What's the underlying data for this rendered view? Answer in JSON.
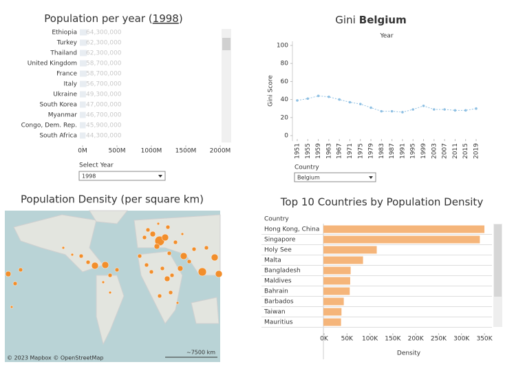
{
  "chart_data": [
    {
      "type": "barh",
      "title_parts": [
        "Population per year (",
        "1998",
        ")"
      ],
      "categories": [
        "Ethiopia",
        "Turkey",
        "Thailand",
        "United Kingdom",
        "France",
        "Italy",
        "Ukraine",
        "South Korea",
        "Myanmar",
        "Congo, Dem. Rep.",
        "South Africa"
      ],
      "values": [
        64300000,
        62300000,
        62300000,
        58700000,
        58700000,
        56700000,
        49300000,
        47000000,
        46700000,
        45900000,
        44300000
      ],
      "value_labels": [
        "64,300,000",
        "62,300,000",
        "62,300,000",
        "58,700,000",
        "58,700,000",
        "56,700,000",
        "49,300,000",
        "47,000,000",
        "46,700,000",
        "45,900,000",
        "44,300,000"
      ],
      "color": "#e8edf2",
      "xlim": [
        0,
        2000000000
      ],
      "xticks": [
        {
          "value": 0,
          "label": "0M"
        },
        {
          "value": 500000000,
          "label": "500M"
        },
        {
          "value": 1000000000,
          "label": "1000M"
        },
        {
          "value": 1500000000,
          "label": "1500M"
        },
        {
          "value": 2000000000,
          "label": "2000M"
        }
      ]
    },
    {
      "type": "line",
      "title_parts": [
        "Gini",
        "Belgium"
      ],
      "x_label": "Year",
      "y_label": "Gini Score",
      "color": "#8fc0e3",
      "x": [
        1951,
        1955,
        1959,
        1963,
        1967,
        1971,
        1975,
        1979,
        1983,
        1987,
        1991,
        1995,
        1999,
        2003,
        2007,
        2011,
        2015,
        2019
      ],
      "values": [
        39,
        41,
        44,
        43,
        40,
        37,
        35,
        31,
        27,
        27,
        26,
        29,
        33,
        29,
        29,
        28,
        28,
        30
      ],
      "xlim": [
        1951,
        2019
      ],
      "xticks": [
        1951,
        1955,
        1959,
        1963,
        1967,
        1971,
        1975,
        1979,
        1983,
        1987,
        1991,
        1995,
        1999,
        2003,
        2007,
        2011,
        2015,
        2019
      ],
      "ylim": [
        0,
        100
      ],
      "yticks": [
        0,
        20,
        40,
        60,
        80,
        100
      ]
    },
    {
      "type": "barh",
      "title": "Top 10 Countries by Population Density",
      "category_header": "Country",
      "x_label": "Density",
      "color": "#f5b57a",
      "categories": [
        "Hong Kong, China",
        "Singapore",
        "Holy See",
        "Malta",
        "Bangladesh",
        "Maldives",
        "Bahrain",
        "Barbados",
        "Taiwan",
        "Mauritius"
      ],
      "values": [
        350000,
        340000,
        115000,
        85000,
        58000,
        57000,
        56000,
        43000,
        38000,
        37000
      ],
      "xlim": [
        0,
        350000
      ],
      "xticks": [
        {
          "value": 0,
          "label": "0K"
        },
        {
          "value": 50000,
          "label": "50K"
        },
        {
          "value": 100000,
          "label": "100K"
        },
        {
          "value": 150000,
          "label": "150K"
        },
        {
          "value": 200000,
          "label": "200K"
        },
        {
          "value": 250000,
          "label": "250K"
        },
        {
          "value": 300000,
          "label": "300K"
        },
        {
          "value": 350000,
          "label": "350K"
        }
      ]
    }
  ],
  "controls": {
    "year": {
      "label": "Select Year",
      "value": "1998"
    },
    "country": {
      "label": "Country",
      "value": "Belgium"
    }
  },
  "map": {
    "title": "Population Density (per square km)",
    "attribution": "© 2023 Mapbox © OpenStreetMap",
    "scale": "~7500 km"
  }
}
